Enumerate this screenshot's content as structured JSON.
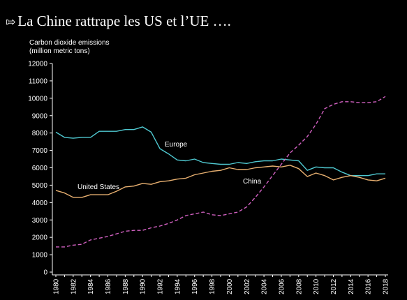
{
  "slide": {
    "bullet": "⇰",
    "title": "La Chine rattrape les US et l’UE …."
  },
  "chart_data": {
    "type": "line",
    "ylabel_line1": "Carbon dioxide emissions",
    "ylabel_line2": "(million metric tons)",
    "xlabel": "",
    "ylim": [
      0,
      12000
    ],
    "yticks": [
      0,
      1000,
      2000,
      3000,
      4000,
      5000,
      6000,
      7000,
      8000,
      9000,
      10000,
      11000,
      12000
    ],
    "xlim": [
      1980,
      2018
    ],
    "xticks": [
      1980,
      1982,
      1984,
      1986,
      1988,
      1990,
      1992,
      1994,
      1996,
      1998,
      2000,
      2002,
      2004,
      2006,
      2008,
      2010,
      2012,
      2014,
      2016,
      2018
    ],
    "grid": false,
    "x": [
      1980,
      1981,
      1982,
      1983,
      1984,
      1985,
      1986,
      1987,
      1988,
      1989,
      1990,
      1991,
      1992,
      1993,
      1994,
      1995,
      1996,
      1997,
      1998,
      1999,
      2000,
      2001,
      2002,
      2003,
      2004,
      2005,
      2006,
      2007,
      2008,
      2009,
      2010,
      2011,
      2012,
      2013,
      2014,
      2015,
      2016,
      2017,
      2018
    ],
    "series": [
      {
        "name": "Europe",
        "color": "#4fc8d0",
        "dashed": false,
        "values": [
          8050,
          7750,
          7700,
          7750,
          7750,
          8100,
          8100,
          8100,
          8200,
          8200,
          8350,
          8050,
          7100,
          6800,
          6450,
          6400,
          6500,
          6300,
          6250,
          6200,
          6200,
          6300,
          6250,
          6350,
          6400,
          6400,
          6500,
          6450,
          6400,
          5850,
          6050,
          6000,
          6000,
          5750,
          5550,
          5550,
          5550,
          5650,
          5650
        ]
      },
      {
        "name": "United States",
        "color": "#e8b070",
        "dashed": false,
        "values": [
          4700,
          4550,
          4300,
          4300,
          4450,
          4450,
          4450,
          4650,
          4900,
          4950,
          5100,
          5050,
          5200,
          5250,
          5350,
          5400,
          5600,
          5700,
          5800,
          5850,
          6000,
          5900,
          5900,
          6000,
          6050,
          6100,
          6050,
          6150,
          5950,
          5500,
          5700,
          5550,
          5300,
          5450,
          5550,
          5450,
          5300,
          5250,
          5400
        ]
      },
      {
        "name": "China",
        "color": "#d060c0",
        "dashed": true,
        "values": [
          1450,
          1450,
          1550,
          1600,
          1850,
          1950,
          2050,
          2200,
          2350,
          2400,
          2400,
          2550,
          2650,
          2800,
          3000,
          3250,
          3350,
          3450,
          3300,
          3250,
          3350,
          3450,
          3750,
          4300,
          4900,
          5550,
          6200,
          6850,
          7300,
          7800,
          8500,
          9400,
          9650,
          9800,
          9800,
          9750,
          9750,
          9800,
          10100
        ]
      }
    ],
    "annotations": {
      "europe": "Europe",
      "united_states": "United States",
      "china": "China"
    }
  }
}
